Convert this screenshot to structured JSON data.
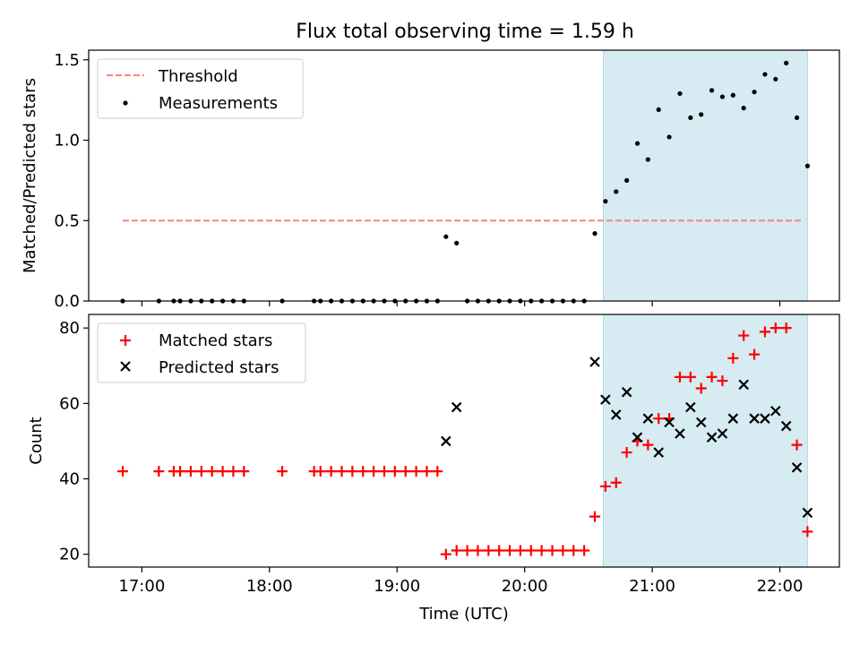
{
  "title": "Flux total observing time = 1.59 h",
  "colors": {
    "threshold": "#ff7f7f",
    "measurement": "#000000",
    "matched": "#ff0000",
    "predicted": "#000000",
    "highlight": "#add8e6"
  },
  "chart_data": [
    {
      "type": "scatter",
      "panel": "top",
      "ylabel": "Matched/Predicted stars",
      "xlim": [
        "16:35",
        "22:28"
      ],
      "ylim": [
        0,
        1.56
      ],
      "yticks": [
        0.0,
        0.5,
        1.0,
        1.5
      ],
      "ytick_labels": [
        "0.0",
        "0.5",
        "1.0",
        "1.5"
      ],
      "highlight_span": [
        "20:37",
        "22:13"
      ],
      "legend": {
        "position": "upper-left",
        "entries": [
          "Threshold",
          "Measurements"
        ]
      },
      "series": [
        {
          "name": "Threshold",
          "style": "dashed-line",
          "x": [
            "16:51",
            "22:11"
          ],
          "y": [
            0.5,
            0.5
          ]
        },
        {
          "name": "Measurements",
          "style": "dot",
          "x": [
            "16:51",
            "17:08",
            "17:15",
            "17:18",
            "17:23",
            "17:28",
            "17:33",
            "17:38",
            "17:43",
            "17:48",
            "18:06",
            "18:21",
            "18:24",
            "18:29",
            "18:34",
            "18:39",
            "18:44",
            "18:49",
            "18:54",
            "18:59",
            "19:04",
            "19:09",
            "19:14",
            "19:19",
            "19:23",
            "19:28",
            "19:33",
            "19:38",
            "19:43",
            "19:48",
            "19:53",
            "19:58",
            "20:03",
            "20:08",
            "20:13",
            "20:18",
            "20:23",
            "20:28",
            "20:33",
            "20:38",
            "20:43",
            "20:48",
            "20:53",
            "20:58",
            "21:03",
            "21:08",
            "21:13",
            "21:18",
            "21:23",
            "21:28",
            "21:33",
            "21:38",
            "21:43",
            "21:48",
            "21:53",
            "21:58",
            "22:03",
            "22:08",
            "22:13"
          ],
          "y": [
            0,
            0,
            0,
            0,
            0,
            0,
            0,
            0,
            0,
            0,
            0,
            0,
            0,
            0,
            0,
            0,
            0,
            0,
            0,
            0,
            0,
            0,
            0,
            0,
            0.4,
            0.36,
            0,
            0,
            0,
            0,
            0,
            0,
            0,
            0,
            0,
            0,
            0,
            0,
            0.42,
            0.62,
            0.68,
            0.75,
            0.98,
            0.88,
            1.19,
            1.02,
            1.29,
            1.14,
            1.16,
            1.31,
            1.27,
            1.28,
            1.2,
            1.3,
            1.41,
            1.38,
            1.48,
            1.14,
            0.84
          ]
        }
      ]
    },
    {
      "type": "scatter",
      "panel": "bottom",
      "xlabel": "Time (UTC)",
      "ylabel": "Count",
      "xlim": [
        "16:35",
        "22:28"
      ],
      "ylim": [
        16.6,
        83.6
      ],
      "yticks": [
        20,
        40,
        60,
        80
      ],
      "ytick_labels": [
        "20",
        "40",
        "60",
        "80"
      ],
      "xticks": [
        "17:00",
        "18:00",
        "19:00",
        "20:00",
        "21:00",
        "22:00"
      ],
      "highlight_span": [
        "20:37",
        "22:13"
      ],
      "legend": {
        "position": "upper-left",
        "entries": [
          "Matched stars",
          "Predicted stars"
        ]
      },
      "series": [
        {
          "name": "Matched stars",
          "marker": "plus",
          "x": [
            "16:51",
            "17:08",
            "17:15",
            "17:18",
            "17:23",
            "17:28",
            "17:33",
            "17:38",
            "17:43",
            "17:48",
            "18:06",
            "18:21",
            "18:24",
            "18:29",
            "18:34",
            "18:39",
            "18:44",
            "18:49",
            "18:54",
            "18:59",
            "19:04",
            "19:09",
            "19:14",
            "19:19",
            "19:23",
            "19:28",
            "19:33",
            "19:38",
            "19:43",
            "19:48",
            "19:53",
            "19:58",
            "20:03",
            "20:08",
            "20:13",
            "20:18",
            "20:23",
            "20:28",
            "20:33",
            "20:38",
            "20:43",
            "20:48",
            "20:53",
            "20:58",
            "21:03",
            "21:08",
            "21:13",
            "21:18",
            "21:23",
            "21:28",
            "21:33",
            "21:38",
            "21:43",
            "21:48",
            "21:53",
            "21:58",
            "22:03",
            "22:08",
            "22:13"
          ],
          "y": [
            42,
            42,
            42,
            42,
            42,
            42,
            42,
            42,
            42,
            42,
            42,
            42,
            42,
            42,
            42,
            42,
            42,
            42,
            42,
            42,
            42,
            42,
            42,
            42,
            20,
            21,
            21,
            21,
            21,
            21,
            21,
            21,
            21,
            21,
            21,
            21,
            21,
            21,
            30,
            38,
            39,
            47,
            50,
            49,
            56,
            56,
            67,
            67,
            64,
            67,
            66,
            72,
            78,
            73,
            79,
            80,
            80,
            49,
            26
          ]
        },
        {
          "name": "Predicted stars",
          "marker": "x",
          "x": [
            "19:23",
            "19:28",
            "20:33",
            "20:38",
            "20:43",
            "20:48",
            "20:53",
            "20:58",
            "21:03",
            "21:08",
            "21:13",
            "21:18",
            "21:23",
            "21:28",
            "21:33",
            "21:38",
            "21:43",
            "21:48",
            "21:53",
            "21:58",
            "22:03",
            "22:08",
            "22:13"
          ],
          "y": [
            50,
            59,
            71,
            61,
            57,
            63,
            51,
            56,
            47,
            55,
            52,
            59,
            55,
            51,
            52,
            56,
            65,
            56,
            56,
            58,
            54,
            43,
            31
          ]
        }
      ]
    }
  ]
}
